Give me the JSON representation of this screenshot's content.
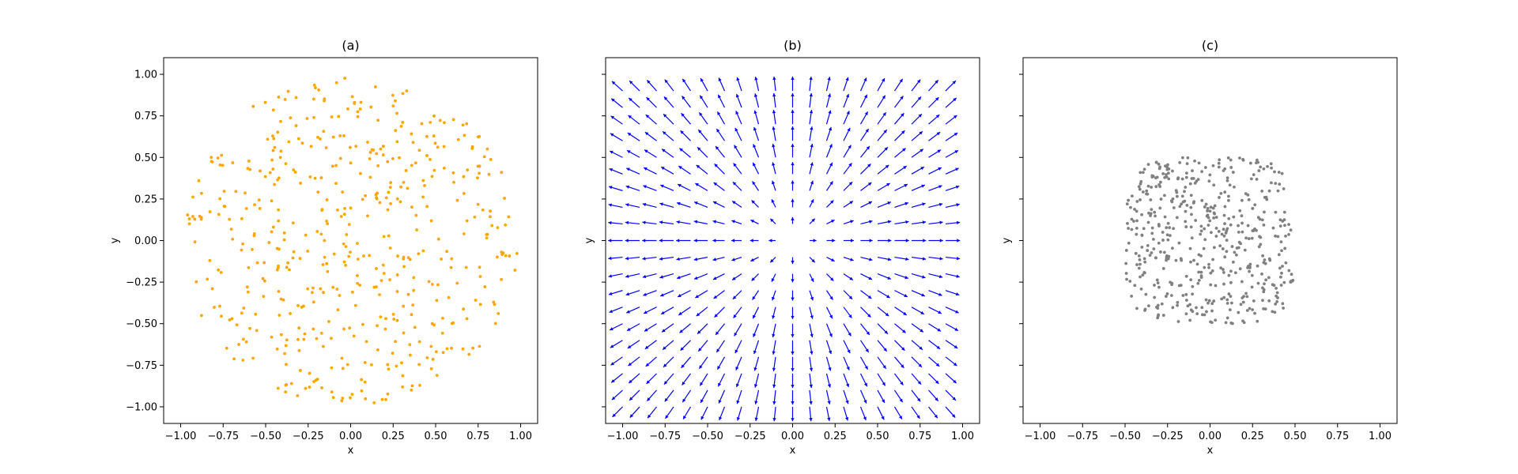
{
  "chart_data": [
    {
      "type": "scatter",
      "title": "(a)",
      "xlabel": "x",
      "ylabel": "y",
      "xlim": [
        -1.1,
        1.1
      ],
      "ylim": [
        -1.1,
        1.1
      ],
      "xticks": [
        -1.0,
        -0.75,
        -0.5,
        -0.25,
        0.0,
        0.25,
        0.5,
        0.75,
        1.0
      ],
      "yticks": [
        -1.0,
        -0.75,
        -0.5,
        -0.25,
        0.0,
        0.25,
        0.5,
        0.75,
        1.0
      ],
      "xtick_labels": [
        "−1.00",
        "−0.75",
        "−0.50",
        "−0.25",
        "0.00",
        "0.25",
        "0.50",
        "0.75",
        "1.00"
      ],
      "ytick_labels": [
        "−1.00",
        "−0.75",
        "−0.50",
        "−0.25",
        "0.00",
        "0.25",
        "0.50",
        "0.75",
        "1.00"
      ],
      "color": "#ffa500",
      "distribution": "uniform points in the unit disk",
      "point_count": 500,
      "grid": false
    },
    {
      "type": "quiver",
      "title": "(b)",
      "xlabel": "x",
      "ylabel": "y",
      "xlim": [
        -1.1,
        1.1
      ],
      "ylim": [
        -1.1,
        1.1
      ],
      "xticks": [
        -1.0,
        -0.75,
        -0.5,
        -0.25,
        0.0,
        0.25,
        0.5,
        0.75,
        1.0
      ],
      "xtick_labels": [
        "−1.00",
        "−0.75",
        "−0.50",
        "−0.25",
        "0.00",
        "0.25",
        "0.50",
        "0.75",
        "1.00"
      ],
      "grid_x": [
        -1.0,
        0.9,
        0.1
      ],
      "grid_y": [
        -1.0,
        0.9,
        0.1
      ],
      "field": "radial vectors pointing outward from the origin",
      "color": "#0000ff",
      "grid": false
    },
    {
      "type": "scatter",
      "title": "(c)",
      "xlabel": "x",
      "ylabel": "y",
      "xlim": [
        -1.1,
        1.1
      ],
      "ylim": [
        -1.1,
        1.1
      ],
      "xticks": [
        -1.0,
        -0.75,
        -0.5,
        -0.25,
        0.0,
        0.25,
        0.5,
        0.75,
        1.0
      ],
      "xtick_labels": [
        "−1.00",
        "−0.75",
        "−0.50",
        "−0.25",
        "0.00",
        "0.25",
        "0.50",
        "0.75",
        "1.00"
      ],
      "color": "#808080",
      "distribution": "points in a rounded square from -0.5 to 0.5",
      "point_count": 500,
      "grid": false
    }
  ]
}
